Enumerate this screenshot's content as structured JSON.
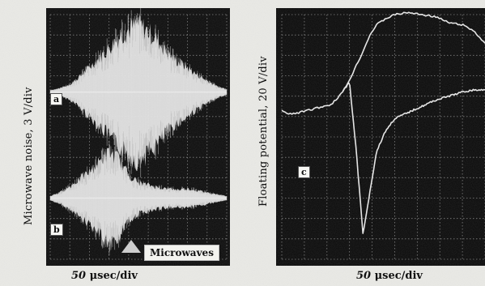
{
  "chart_data": [
    {
      "type": "line",
      "panel": "a",
      "ylabel": "Microwave noise, 3 V/div",
      "xlabel_value": "50",
      "xlabel_unit": "μsec/div",
      "note": "",
      "x": [
        0,
        0.5,
        1.0,
        1.5,
        2.0,
        2.5,
        3.0,
        3.5,
        4.0,
        4.5,
        5.0,
        5.5,
        6.0,
        6.5,
        7.0,
        7.5,
        8.0,
        8.5,
        9.0
      ],
      "envelope_divs": [
        0.1,
        0.2,
        0.4,
        0.8,
        1.3,
        1.8,
        2.3,
        2.9,
        3.3,
        3.6,
        3.2,
        2.7,
        2.0,
        1.6,
        1.3,
        0.9,
        0.6,
        0.3,
        0.15
      ]
    },
    {
      "type": "line",
      "panel": "b",
      "ylabel": "Microwave noise, 3 V/div",
      "xlabel_value": "50",
      "xlabel_unit": "μsec/div",
      "annotation": "Microwaves",
      "x": [
        0,
        0.5,
        1.0,
        1.5,
        2.0,
        2.5,
        3.0,
        3.5,
        4.0,
        4.5,
        5.0,
        5.5,
        6.0,
        6.5,
        7.0,
        7.5,
        8.0,
        8.5,
        9.0
      ],
      "envelope_divs": [
        0.1,
        0.3,
        0.6,
        1.0,
        1.4,
        1.9,
        2.4,
        2.1,
        1.2,
        0.8,
        0.7,
        0.55,
        0.5,
        0.45,
        0.5,
        0.4,
        0.3,
        0.2,
        0.1
      ]
    },
    {
      "type": "line",
      "panel": "c",
      "ylabel": "Floating potential, 20 V/div",
      "xlabel_value": "50",
      "xlabel_unit": "μsec/div",
      "series": [
        {
          "x": [
            0,
            0.3,
            0.8,
            1.5,
            2.2,
            2.7,
            3.0,
            3.3,
            3.6,
            3.9,
            4.2,
            4.6,
            5.0,
            5.6,
            6.2,
            6.8,
            7.4,
            8.0,
            8.5,
            9.0
          ],
          "y": [
            -0.5,
            -0.7,
            -0.6,
            -0.4,
            -0.2,
            0.4,
            1.0,
            1.7,
            2.4,
            3.2,
            3.7,
            4.0,
            4.2,
            4.3,
            4.2,
            4.1,
            3.8,
            3.7,
            3.4,
            2.8
          ]
        },
        {
          "x": [
            2.7,
            3.0,
            3.3,
            3.6,
            3.9,
            4.2,
            4.6,
            5.0,
            5.6,
            6.2,
            6.8,
            7.4,
            8.0,
            8.5,
            9.0
          ],
          "y": [
            0.4,
            0.9,
            -2.5,
            -6.6,
            -4.5,
            -2.5,
            -1.5,
            -0.9,
            -0.6,
            -0.3,
            0.0,
            0.2,
            0.4,
            0.5,
            0.5
          ]
        }
      ]
    }
  ]
}
